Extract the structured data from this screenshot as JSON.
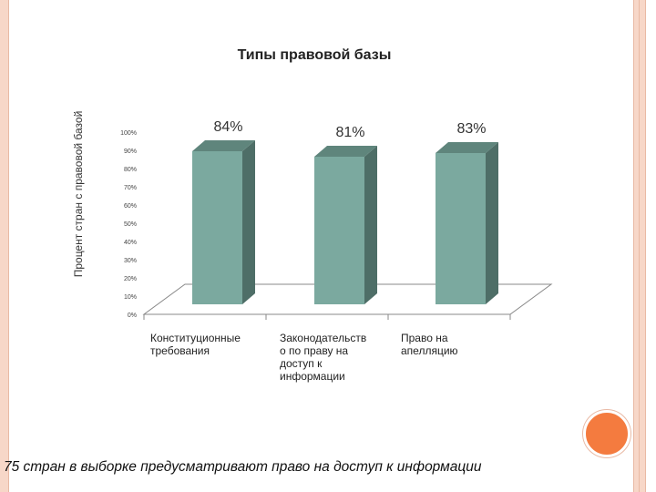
{
  "slide": {
    "caption": "75 стран в выборке предусматривают право на доступ к информации"
  },
  "colors": {
    "bar_front": "#7ba99f",
    "bar_side": "#4e6e67",
    "bar_top": "#5f857c",
    "frame": "#f7d7c8",
    "accent_circle": "#f47b3f"
  },
  "chart_data": {
    "type": "bar",
    "title": "Типы правовой базы",
    "ylabel": "Процент стран с правовой базой",
    "xlabel": "",
    "ylim": [
      0,
      100
    ],
    "yticks": [
      "0%",
      "10%",
      "20%",
      "30%",
      "40%",
      "50%",
      "60%",
      "70%",
      "80%",
      "90%",
      "100%"
    ],
    "categories": [
      [
        "Конституционные",
        "требования"
      ],
      [
        "Законодательств",
        "о по праву на",
        "доступ к",
        "информации"
      ],
      [
        "Право на",
        "апелляцию"
      ]
    ],
    "values": [
      84,
      81,
      83
    ],
    "data_labels": [
      "84%",
      "81%",
      "83%"
    ],
    "grid": false,
    "legend": "none"
  }
}
